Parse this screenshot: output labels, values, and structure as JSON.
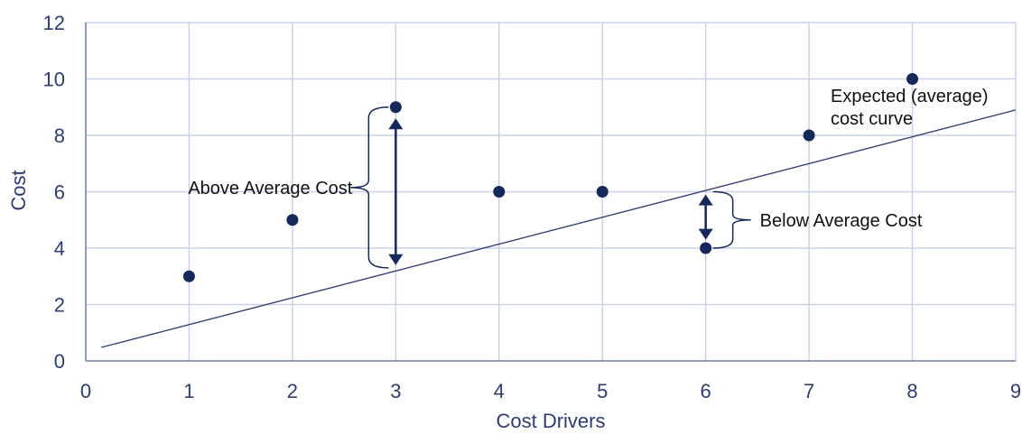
{
  "chart_data": {
    "type": "scatter",
    "xlabel": "Cost Drivers",
    "ylabel": "Cost",
    "xlim": [
      0,
      9
    ],
    "ylim": [
      0,
      12
    ],
    "x_ticks": [
      0,
      1,
      2,
      3,
      4,
      5,
      6,
      7,
      8,
      9
    ],
    "y_ticks": [
      0,
      2,
      4,
      6,
      8,
      10,
      12
    ],
    "grid": true,
    "series": [
      {
        "points": [
          {
            "x": 1,
            "y": 3
          },
          {
            "x": 2,
            "y": 5
          },
          {
            "x": 3,
            "y": 9
          },
          {
            "x": 4,
            "y": 6
          },
          {
            "x": 5,
            "y": 6
          },
          {
            "x": 6,
            "y": 4
          },
          {
            "x": 7,
            "y": 8
          },
          {
            "x": 8,
            "y": 10
          }
        ],
        "color": "#14285a"
      }
    ],
    "trend_line": {
      "label": "Expected (average) cost curve",
      "label_lines": [
        "Expected (average)",
        "cost curve"
      ],
      "from": {
        "x": 0.15,
        "y": 0.48
      },
      "to": {
        "x": 9,
        "y": 8.9
      },
      "color": "#2f3b73"
    },
    "annotations": [
      {
        "id": "above",
        "text": "Above Average Cost",
        "x": 3,
        "from_y": 8.6,
        "to_y": 3.4,
        "brace_top_y": 9.0,
        "brace_bottom_y": 3.3
      },
      {
        "id": "below",
        "text": "Below Average Cost",
        "x": 6,
        "from_y": 5.9,
        "to_y": 4.3,
        "brace_top_y": 6.0,
        "brace_bottom_y": 4.0
      }
    ]
  }
}
